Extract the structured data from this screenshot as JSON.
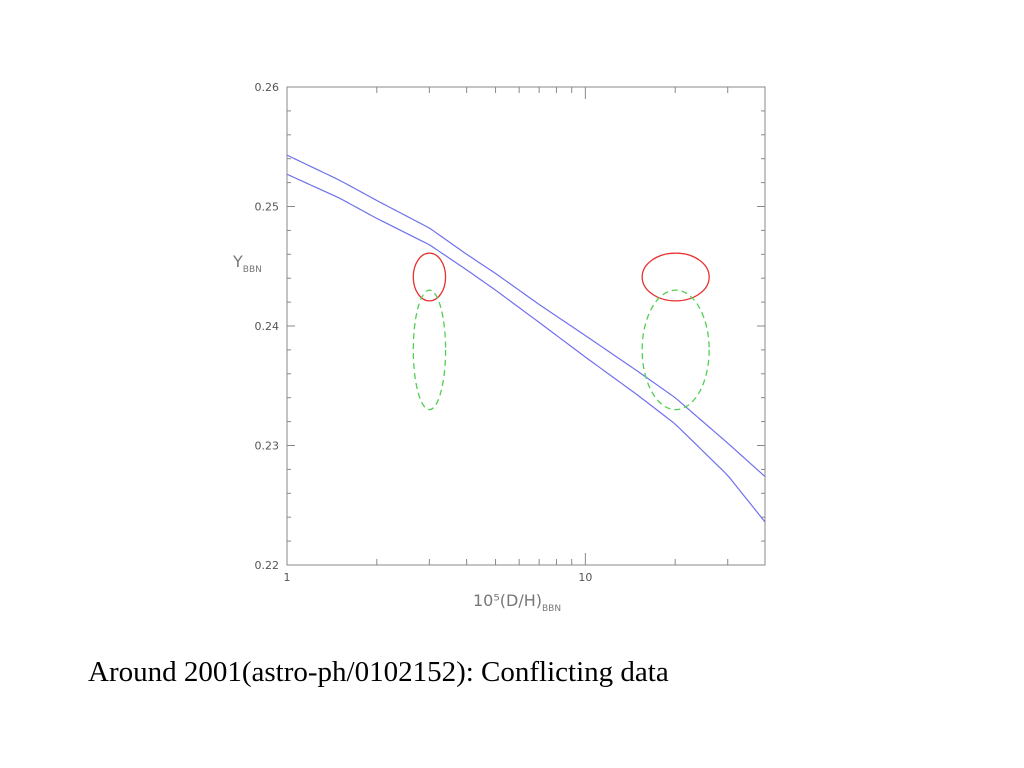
{
  "caption": "Around 2001(astro-ph/0102152): Conflicting data",
  "chart_data": {
    "type": "line",
    "title": "",
    "xlabel": {
      "main": "10⁵(D/H)",
      "subscript": "BBN"
    },
    "ylabel": {
      "main": "Y",
      "subscript": "BBN"
    },
    "xscale": "log",
    "xlim": [
      1,
      40
    ],
    "ylim": [
      0.22,
      0.26
    ],
    "xticks": [
      {
        "value": 1,
        "label": "1"
      },
      {
        "value": 10,
        "label": "10"
      }
    ],
    "yticks": [
      {
        "value": 0.22,
        "label": "0.22"
      },
      {
        "value": 0.23,
        "label": "0.23"
      },
      {
        "value": 0.24,
        "label": "0.24"
      },
      {
        "value": 0.25,
        "label": "0.25"
      },
      {
        "value": 0.26,
        "label": "0.26"
      }
    ],
    "grid": false,
    "series": [
      {
        "color": "#7070ee",
        "style": "solid",
        "x": [
          1,
          1.5,
          2,
          3,
          4,
          5,
          7,
          10,
          15,
          20,
          30,
          40
        ],
        "y": [
          0.2543,
          0.2522,
          0.2505,
          0.2482,
          0.246,
          0.2444,
          0.2418,
          0.2392,
          0.2362,
          0.234,
          0.2302,
          0.2274
        ]
      },
      {
        "color": "#7070ee",
        "style": "solid",
        "x": [
          1,
          1.5,
          2,
          3,
          4,
          5,
          7,
          10,
          15,
          20,
          30,
          40
        ],
        "y": [
          0.2527,
          0.2507,
          0.249,
          0.2468,
          0.2447,
          0.243,
          0.2403,
          0.2374,
          0.2342,
          0.2318,
          0.2275,
          0.2236
        ]
      }
    ],
    "ellipses": [
      {
        "cx": 3.0,
        "cy": 0.2441,
        "x_range": [
          2.65,
          3.4
        ],
        "y_range": [
          0.2421,
          0.2461
        ],
        "color": "#e83030",
        "style": "solid"
      },
      {
        "cx": 3.0,
        "cy": 0.238,
        "x_range": [
          2.65,
          3.4
        ],
        "y_range": [
          0.233,
          0.243
        ],
        "color": "#50d050",
        "style": "dashed"
      },
      {
        "cx": 20.0,
        "cy": 0.2441,
        "x_range": [
          15.5,
          26.0
        ],
        "y_range": [
          0.2421,
          0.2461
        ],
        "color": "#e83030",
        "style": "solid"
      },
      {
        "cx": 20.0,
        "cy": 0.238,
        "x_range": [
          15.5,
          26.0
        ],
        "y_range": [
          0.233,
          0.243
        ],
        "color": "#50d050",
        "style": "dashed"
      }
    ],
    "minor_ticks": "log"
  }
}
